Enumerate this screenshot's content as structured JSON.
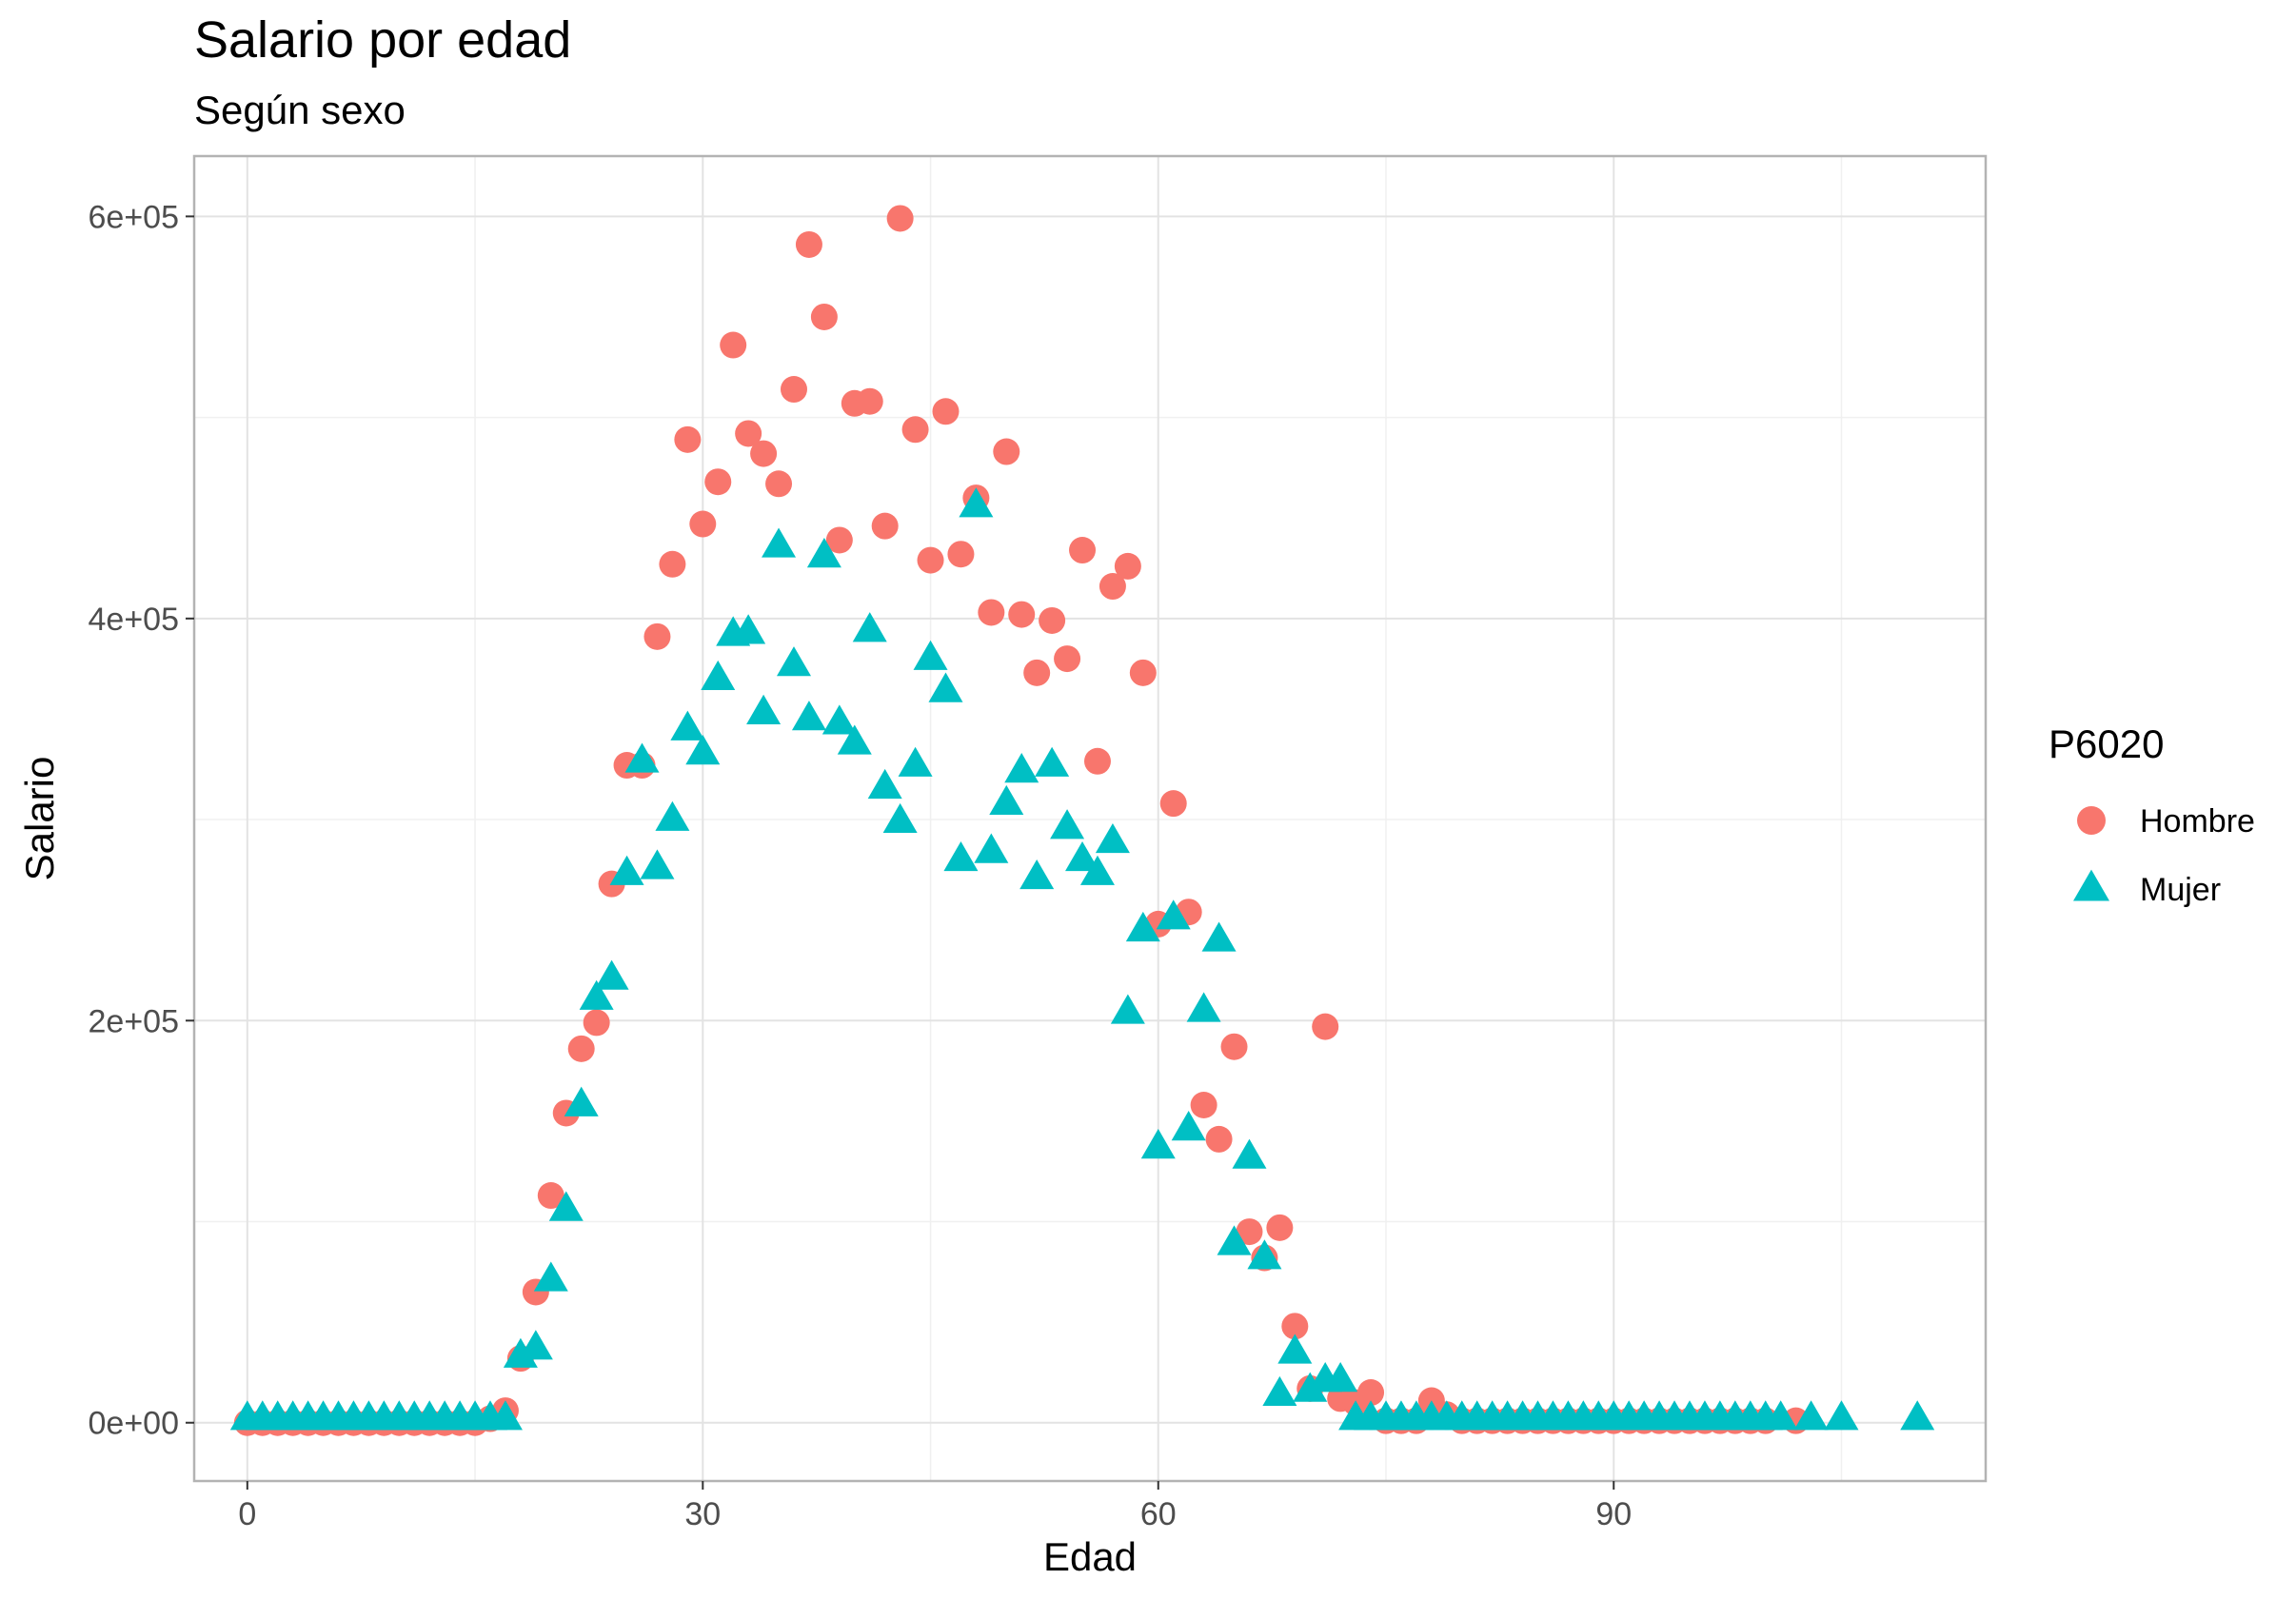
{
  "chart_data": {
    "type": "scatter",
    "title": "Salario por edad",
    "subtitle": "Según sexo",
    "xlabel": "Edad",
    "ylabel": "Salario",
    "xlim": [
      -3.5,
      114.5
    ],
    "ylim": [
      -29000,
      630000
    ],
    "x_ticks": [
      0,
      30,
      60,
      90
    ],
    "x_tick_labels": [
      "0",
      "30",
      "60",
      "90"
    ],
    "y_ticks": [
      0,
      200000,
      400000,
      600000
    ],
    "y_tick_labels": [
      "0e+00",
      "2e+05",
      "4e+05",
      "6e+05"
    ],
    "grid": true,
    "legend_title": "P6020",
    "legend_position": "right",
    "series": [
      {
        "name": "Hombre",
        "color": "#F8766D",
        "marker": "circle",
        "points": [
          [
            0,
            0
          ],
          [
            1,
            0
          ],
          [
            2,
            0
          ],
          [
            3,
            0
          ],
          [
            4,
            0
          ],
          [
            5,
            0
          ],
          [
            6,
            0
          ],
          [
            7,
            0
          ],
          [
            8,
            0
          ],
          [
            9,
            0
          ],
          [
            10,
            0
          ],
          [
            11,
            0
          ],
          [
            12,
            0
          ],
          [
            13,
            0
          ],
          [
            14,
            0
          ],
          [
            15,
            0
          ],
          [
            16,
            2000
          ],
          [
            17,
            6000
          ],
          [
            18,
            32000
          ],
          [
            19,
            65000
          ],
          [
            20,
            113000
          ],
          [
            21,
            154000
          ],
          [
            22,
            186000
          ],
          [
            23,
            199000
          ],
          [
            24,
            268000
          ],
          [
            25,
            327000
          ],
          [
            26,
            327000
          ],
          [
            27,
            391000
          ],
          [
            28,
            427000
          ],
          [
            29,
            489000
          ],
          [
            30,
            447000
          ],
          [
            31,
            468000
          ],
          [
            32,
            536000
          ],
          [
            33,
            492000
          ],
          [
            34,
            482000
          ],
          [
            35,
            467000
          ],
          [
            36,
            514000
          ],
          [
            37,
            586000
          ],
          [
            38,
            550000
          ],
          [
            39,
            439000
          ],
          [
            40,
            507000
          ],
          [
            41,
            508000
          ],
          [
            42,
            446000
          ],
          [
            43,
            599000
          ],
          [
            44,
            494000
          ],
          [
            45,
            429000
          ],
          [
            46,
            503000
          ],
          [
            47,
            432000
          ],
          [
            48,
            460000
          ],
          [
            49,
            403000
          ],
          [
            50,
            483000
          ],
          [
            51,
            402000
          ],
          [
            52,
            373000
          ],
          [
            53,
            399000
          ],
          [
            54,
            380000
          ],
          [
            55,
            434000
          ],
          [
            56,
            329000
          ],
          [
            57,
            416000
          ],
          [
            58,
            426000
          ],
          [
            59,
            373000
          ],
          [
            60,
            248000
          ],
          [
            61,
            308000
          ],
          [
            62,
            254000
          ],
          [
            63,
            158000
          ],
          [
            64,
            141000
          ],
          [
            65,
            187000
          ],
          [
            66,
            95000
          ],
          [
            67,
            82000
          ],
          [
            68,
            97000
          ],
          [
            69,
            48000
          ],
          [
            70,
            17000
          ],
          [
            71,
            197000
          ],
          [
            72,
            12000
          ],
          [
            73,
            10000
          ],
          [
            74,
            15000
          ],
          [
            75,
            1000
          ],
          [
            76,
            1000
          ],
          [
            77,
            1000
          ],
          [
            78,
            11000
          ],
          [
            79,
            4000
          ],
          [
            80,
            1000
          ],
          [
            81,
            1000
          ],
          [
            82,
            1000
          ],
          [
            83,
            1000
          ],
          [
            84,
            1000
          ],
          [
            85,
            1000
          ],
          [
            86,
            1000
          ],
          [
            87,
            1000
          ],
          [
            88,
            1000
          ],
          [
            89,
            1000
          ],
          [
            90,
            1000
          ],
          [
            91,
            1000
          ],
          [
            92,
            1000
          ],
          [
            93,
            1000
          ],
          [
            94,
            1000
          ],
          [
            95,
            1000
          ],
          [
            96,
            1000
          ],
          [
            97,
            1000
          ],
          [
            98,
            1000
          ],
          [
            99,
            1000
          ],
          [
            100,
            1000
          ],
          [
            102,
            1000
          ]
        ]
      },
      {
        "name": "Mujer",
        "color": "#00BFC4",
        "marker": "triangle",
        "points": [
          [
            0,
            2000
          ],
          [
            1,
            2000
          ],
          [
            2,
            2000
          ],
          [
            3,
            2000
          ],
          [
            4,
            2000
          ],
          [
            5,
            2000
          ],
          [
            6,
            2000
          ],
          [
            7,
            2000
          ],
          [
            8,
            2000
          ],
          [
            9,
            2000
          ],
          [
            10,
            2000
          ],
          [
            11,
            2000
          ],
          [
            12,
            2000
          ],
          [
            13,
            2000
          ],
          [
            14,
            2000
          ],
          [
            15,
            2000
          ],
          [
            16,
            2000
          ],
          [
            17,
            2000
          ],
          [
            18,
            33000
          ],
          [
            19,
            37000
          ],
          [
            20,
            71000
          ],
          [
            21,
            106000
          ],
          [
            22,
            158000
          ],
          [
            23,
            211000
          ],
          [
            24,
            221000
          ],
          [
            25,
            273000
          ],
          [
            26,
            329000
          ],
          [
            27,
            276000
          ],
          [
            28,
            300000
          ],
          [
            29,
            345000
          ],
          [
            30,
            333000
          ],
          [
            31,
            370000
          ],
          [
            32,
            392000
          ],
          [
            33,
            393000
          ],
          [
            34,
            353000
          ],
          [
            35,
            436000
          ],
          [
            36,
            377000
          ],
          [
            37,
            350000
          ],
          [
            38,
            431000
          ],
          [
            39,
            348000
          ],
          [
            40,
            338000
          ],
          [
            41,
            394000
          ],
          [
            42,
            316000
          ],
          [
            43,
            299000
          ],
          [
            44,
            327000
          ],
          [
            45,
            380000
          ],
          [
            46,
            364000
          ],
          [
            47,
            280000
          ],
          [
            48,
            456000
          ],
          [
            49,
            284000
          ],
          [
            50,
            308000
          ],
          [
            51,
            324000
          ],
          [
            52,
            271000
          ],
          [
            53,
            327000
          ],
          [
            54,
            296000
          ],
          [
            55,
            280000
          ],
          [
            56,
            273000
          ],
          [
            57,
            289000
          ],
          [
            58,
            204000
          ],
          [
            59,
            245000
          ],
          [
            60,
            137000
          ],
          [
            61,
            251000
          ],
          [
            62,
            146000
          ],
          [
            63,
            205000
          ],
          [
            64,
            240000
          ],
          [
            65,
            89000
          ],
          [
            66,
            132000
          ],
          [
            67,
            82000
          ],
          [
            68,
            14000
          ],
          [
            69,
            35000
          ],
          [
            70,
            16000
          ],
          [
            71,
            21000
          ],
          [
            72,
            21000
          ],
          [
            73,
            2000
          ],
          [
            74,
            2000
          ],
          [
            75,
            2000
          ],
          [
            76,
            2000
          ],
          [
            77,
            2000
          ],
          [
            78,
            2000
          ],
          [
            79,
            2000
          ],
          [
            80,
            2000
          ],
          [
            81,
            2000
          ],
          [
            82,
            2000
          ],
          [
            83,
            2000
          ],
          [
            84,
            2000
          ],
          [
            85,
            2000
          ],
          [
            86,
            2000
          ],
          [
            87,
            2000
          ],
          [
            88,
            2000
          ],
          [
            89,
            2000
          ],
          [
            90,
            2000
          ],
          [
            91,
            2000
          ],
          [
            92,
            2000
          ],
          [
            93,
            2000
          ],
          [
            94,
            2000
          ],
          [
            95,
            2000
          ],
          [
            96,
            2000
          ],
          [
            97,
            2000
          ],
          [
            98,
            2000
          ],
          [
            99,
            2000
          ],
          [
            100,
            2000
          ],
          [
            101,
            2000
          ],
          [
            103,
            2000
          ],
          [
            105,
            2000
          ],
          [
            110,
            2000
          ]
        ]
      }
    ]
  }
}
